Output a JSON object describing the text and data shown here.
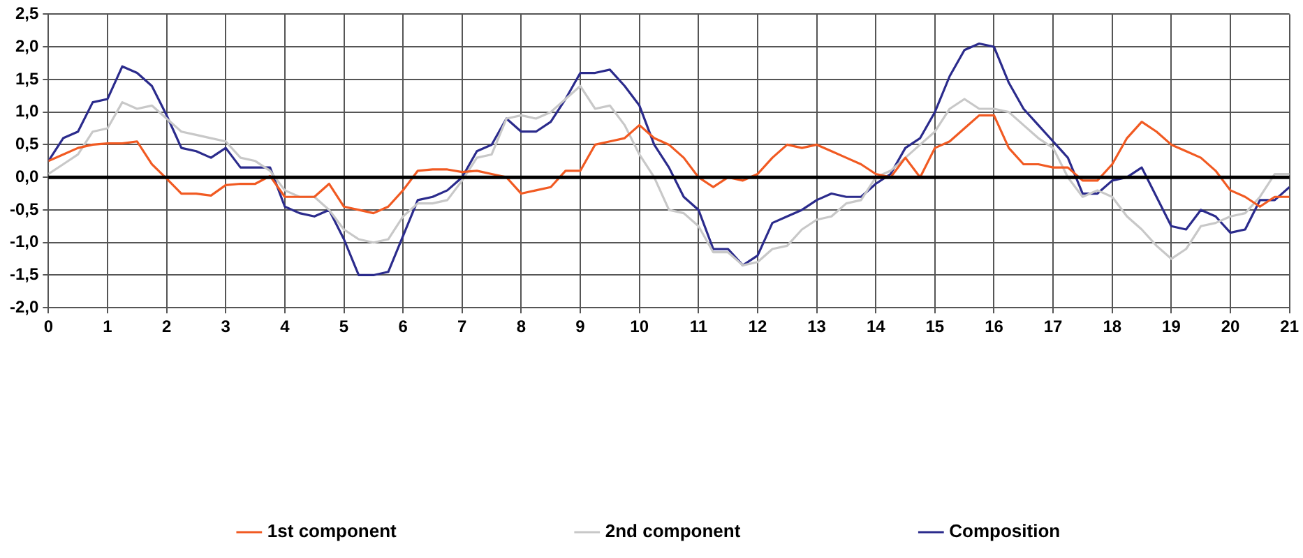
{
  "chart_data": {
    "type": "line",
    "x": [
      0,
      0.25,
      0.5,
      0.75,
      1,
      1.25,
      1.5,
      1.75,
      2,
      2.25,
      2.5,
      2.75,
      3,
      3.25,
      3.5,
      3.75,
      4,
      4.25,
      4.5,
      4.75,
      5,
      5.25,
      5.5,
      5.75,
      6,
      6.25,
      6.5,
      6.75,
      7,
      7.25,
      7.5,
      7.75,
      8,
      8.25,
      8.5,
      8.75,
      9,
      9.25,
      9.5,
      9.75,
      10,
      10.25,
      10.5,
      10.75,
      11,
      11.25,
      11.5,
      11.75,
      12,
      12.25,
      12.5,
      12.75,
      13,
      13.25,
      13.5,
      13.75,
      14,
      14.25,
      14.5,
      14.75,
      15,
      15.25,
      15.5,
      15.75,
      16,
      16.25,
      16.5,
      16.75,
      17,
      17.25,
      17.5,
      17.75,
      18,
      18.25,
      18.5,
      18.75,
      19,
      19.25,
      19.5,
      19.75,
      20,
      20.25,
      20.5,
      20.75,
      21
    ],
    "series": [
      {
        "name": "1st component",
        "color": "#f15a22",
        "values": [
          0.25,
          0.35,
          0.45,
          0.5,
          0.52,
          0.52,
          0.55,
          0.2,
          -0.02,
          -0.25,
          -0.25,
          -0.28,
          -0.12,
          -0.1,
          -0.1,
          0.02,
          -0.3,
          -0.3,
          -0.3,
          -0.1,
          -0.45,
          -0.5,
          -0.55,
          -0.45,
          -0.2,
          0.1,
          0.12,
          0.12,
          0.08,
          0.1,
          0.05,
          0.0,
          -0.25,
          -0.2,
          -0.15,
          0.1,
          0.1,
          0.5,
          0.55,
          0.6,
          0.8,
          0.6,
          0.5,
          0.3,
          0.0,
          -0.15,
          0.0,
          -0.05,
          0.05,
          0.3,
          0.5,
          0.45,
          0.5,
          0.4,
          0.3,
          0.2,
          0.05,
          0.0,
          0.3,
          0.0,
          0.45,
          0.55,
          0.75,
          0.95,
          0.95,
          0.45,
          0.2,
          0.2,
          0.15,
          0.15,
          -0.05,
          -0.05,
          0.2,
          0.6,
          0.85,
          0.7,
          0.5,
          0.4,
          0.3,
          0.1,
          -0.2,
          -0.3,
          -0.45,
          -0.3,
          -0.3
        ]
      },
      {
        "name": "2nd component",
        "color": "#c8c8c8",
        "values": [
          0.05,
          0.2,
          0.35,
          0.7,
          0.75,
          1.15,
          1.05,
          1.1,
          0.9,
          0.7,
          0.65,
          0.6,
          0.55,
          0.3,
          0.25,
          0.1,
          -0.2,
          -0.3,
          -0.3,
          -0.5,
          -0.8,
          -0.95,
          -1.0,
          -0.95,
          -0.6,
          -0.4,
          -0.4,
          -0.35,
          -0.05,
          0.3,
          0.35,
          0.9,
          0.95,
          0.9,
          1.0,
          1.2,
          1.4,
          1.05,
          1.1,
          0.8,
          0.35,
          0.0,
          -0.5,
          -0.55,
          -0.75,
          -1.15,
          -1.15,
          -1.35,
          -1.3,
          -1.1,
          -1.05,
          -0.8,
          -0.65,
          -0.6,
          -0.4,
          -0.35,
          0.0,
          0.1,
          0.3,
          0.5,
          0.7,
          1.05,
          1.2,
          1.05,
          1.05,
          1.0,
          0.8,
          0.6,
          0.45,
          0.0,
          -0.3,
          -0.2,
          -0.3,
          -0.6,
          -0.8,
          -1.05,
          -1.25,
          -1.1,
          -0.75,
          -0.7,
          -0.6,
          -0.55,
          -0.3,
          0.05,
          0.05
        ]
      },
      {
        "name": "Composition",
        "color": "#2b2b8c",
        "values": [
          0.25,
          0.6,
          0.7,
          1.15,
          1.2,
          1.7,
          1.6,
          1.4,
          0.95,
          0.45,
          0.4,
          0.3,
          0.45,
          0.15,
          0.15,
          0.15,
          -0.45,
          -0.55,
          -0.6,
          -0.5,
          -0.95,
          -1.5,
          -1.5,
          -1.45,
          -0.9,
          -0.35,
          -0.3,
          -0.2,
          0.0,
          0.4,
          0.5,
          0.9,
          0.7,
          0.7,
          0.85,
          1.2,
          1.6,
          1.6,
          1.65,
          1.4,
          1.1,
          0.5,
          0.15,
          -0.3,
          -0.5,
          -1.1,
          -1.1,
          -1.35,
          -1.2,
          -0.7,
          -0.6,
          -0.5,
          -0.35,
          -0.25,
          -0.3,
          -0.3,
          -0.1,
          0.05,
          0.45,
          0.6,
          1.0,
          1.55,
          1.95,
          2.05,
          2.0,
          1.45,
          1.05,
          0.8,
          0.55,
          0.3,
          -0.25,
          -0.25,
          -0.05,
          0.0,
          0.15,
          -0.3,
          -0.75,
          -0.8,
          -0.5,
          -0.6,
          -0.85,
          -0.8,
          -0.35,
          -0.35,
          -0.15
        ]
      }
    ],
    "xlim": [
      0,
      21
    ],
    "xticks": [
      0,
      1,
      2,
      3,
      4,
      5,
      6,
      7,
      8,
      9,
      10,
      11,
      12,
      13,
      14,
      15,
      16,
      17,
      18,
      19,
      20,
      21
    ],
    "ylim": [
      -2,
      2.5
    ],
    "yticks": [
      {
        "value": -2,
        "label": "-2,0"
      },
      {
        "value": -1.5,
        "label": "-1,5"
      },
      {
        "value": -1,
        "label": "-1,0"
      },
      {
        "value": -0.5,
        "label": "-0,5"
      },
      {
        "value": 0,
        "label": "0,0"
      },
      {
        "value": 0.5,
        "label": "0,5"
      },
      {
        "value": 1,
        "label": "1,0"
      },
      {
        "value": 1.5,
        "label": "1,5"
      },
      {
        "value": 2,
        "label": "2,0"
      },
      {
        "value": 2.5,
        "label": "2,5"
      }
    ],
    "ref_lines": [
      {
        "axis": "y",
        "value": 0,
        "color": "#000000"
      }
    ],
    "grid": true,
    "legend": "bottom",
    "marker": "none",
    "line_style": "solid"
  }
}
